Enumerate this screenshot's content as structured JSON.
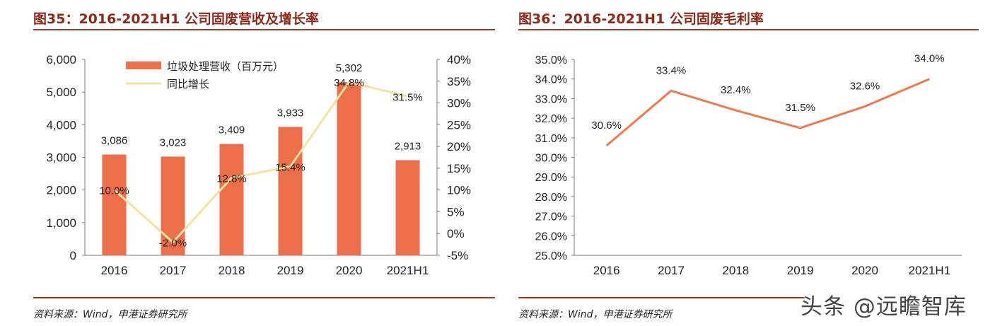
{
  "colors": {
    "bar": "#ec6f4a",
    "growth_line": "#f3e2a0",
    "margin_line": "#ec7a50",
    "title": "#8b2a1a",
    "rule": "#9c3a22",
    "axis": "#7a7a7a"
  },
  "left": {
    "title": "图35：2016-2021H1 公司固废营收及增长率",
    "source": "资料来源：Wind，申港证券研究所"
  },
  "right": {
    "title": "图36：2016-2021H1 公司固废毛利率",
    "source": "资料来源：Wind，申港证券研究所"
  },
  "watermark": "头条 @远瞻智库",
  "chart_data": [
    {
      "type": "bar",
      "title": "图35：2016-2021H1 公司固废营收及增长率",
      "categories": [
        "2016",
        "2017",
        "2018",
        "2019",
        "2020",
        "2021H1"
      ],
      "series": [
        {
          "name": "垃圾处理营收（百万元）",
          "kind": "bar",
          "axis": "left",
          "values": [
            3086,
            3023,
            3409,
            3933,
            5302,
            2913
          ],
          "labels": [
            "3,086",
            "3,023",
            "3,409",
            "3,933",
            "5,302",
            "2,913"
          ]
        },
        {
          "name": "同比增长",
          "kind": "line",
          "axis": "right",
          "values": [
            10.0,
            -2.0,
            12.8,
            15.4,
            34.8,
            31.5
          ],
          "labels": [
            "10.0%",
            "-2.0%",
            "12.8%",
            "15.4%",
            "34.8%",
            "31.5%"
          ]
        }
      ],
      "y_left": {
        "min": 0,
        "max": 6000,
        "ticks": [
          "0",
          "1,000",
          "2,000",
          "3,000",
          "4,000",
          "5,000",
          "6,000"
        ]
      },
      "y_right": {
        "min": -5,
        "max": 40,
        "ticks": [
          "-5%",
          "0%",
          "5%",
          "10%",
          "15%",
          "20%",
          "25%",
          "30%",
          "35%",
          "40%"
        ]
      },
      "legend": "top-left"
    },
    {
      "type": "line",
      "title": "图36：2016-2021H1 公司固废毛利率",
      "categories": [
        "2016",
        "2017",
        "2018",
        "2019",
        "2020",
        "2021H1"
      ],
      "series": [
        {
          "name": "毛利率",
          "values": [
            30.6,
            33.4,
            32.4,
            31.5,
            32.6,
            34.0
          ],
          "labels": [
            "30.6%",
            "33.4%",
            "32.4%",
            "31.5%",
            "32.6%",
            "34.0%"
          ]
        }
      ],
      "y": {
        "min": 25,
        "max": 35,
        "ticks": [
          "25.0%",
          "26.0%",
          "27.0%",
          "28.0%",
          "29.0%",
          "30.0%",
          "31.0%",
          "32.0%",
          "33.0%",
          "34.0%",
          "35.0%"
        ]
      }
    }
  ]
}
